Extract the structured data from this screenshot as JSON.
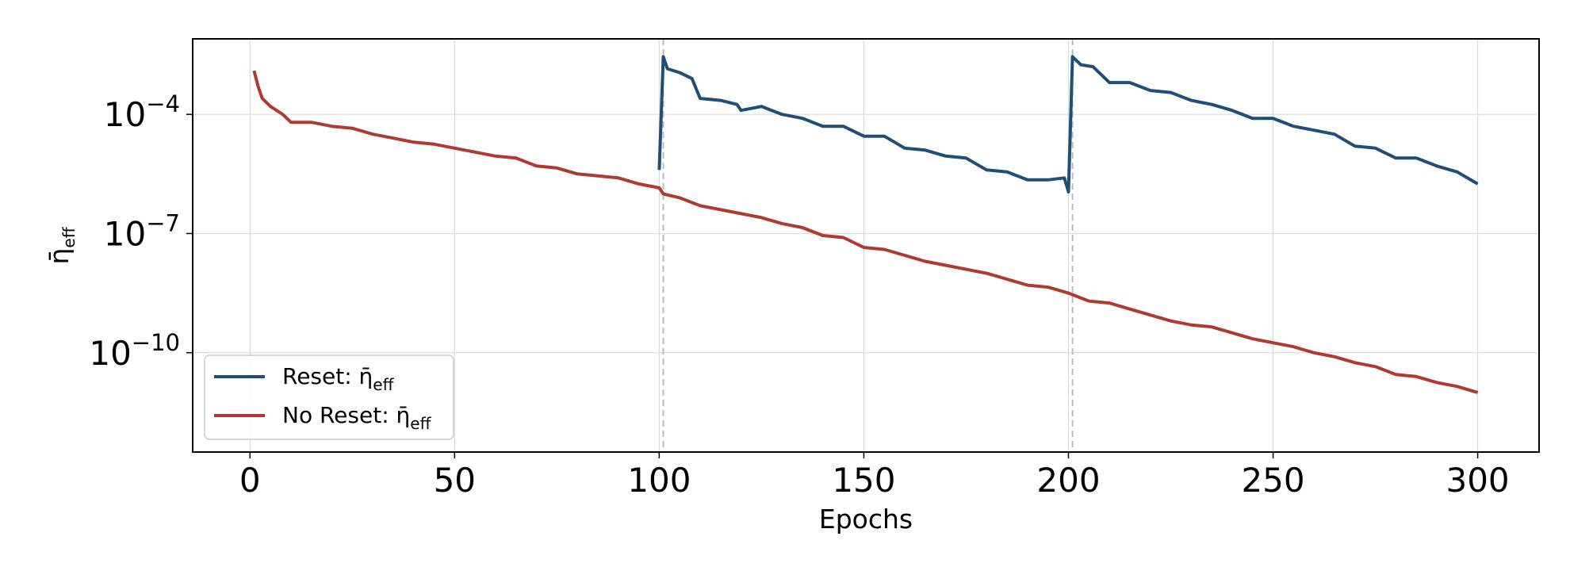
{
  "chart_data": {
    "type": "line",
    "xlabel": "Epochs",
    "ylabel": {
      "main": "η̄",
      "sub": "eff"
    },
    "xlim": [
      -14,
      315
    ],
    "ylim_log10": [
      -12.5,
      -2.1
    ],
    "y_scale": "log",
    "x_ticks": [
      0,
      50,
      100,
      150,
      200,
      250,
      300
    ],
    "y_ticks": [
      {
        "exp": -4,
        "base": "10",
        "power": "−4"
      },
      {
        "exp": -7,
        "base": "10",
        "power": "−7"
      },
      {
        "exp": -10,
        "base": "10",
        "power": "−10"
      }
    ],
    "grid": true,
    "reset_markers": [
      101,
      201
    ],
    "legend_position": "lower-left",
    "series": [
      {
        "name": "Reset: η̄eff",
        "label_main": "Reset: η̄",
        "label_sub": "eff",
        "color": "#1f4e79",
        "points_log10": [
          [
            100,
            -5.4
          ],
          [
            101,
            -2.55
          ],
          [
            102,
            -2.85
          ],
          [
            105,
            -2.95
          ],
          [
            108,
            -3.1
          ],
          [
            110,
            -3.6
          ],
          [
            115,
            -3.65
          ],
          [
            119,
            -3.75
          ],
          [
            120,
            -3.9
          ],
          [
            125,
            -3.8
          ],
          [
            130,
            -4.0
          ],
          [
            135,
            -4.1
          ],
          [
            140,
            -4.3
          ],
          [
            145,
            -4.3
          ],
          [
            150,
            -4.55
          ],
          [
            155,
            -4.55
          ],
          [
            160,
            -4.85
          ],
          [
            165,
            -4.9
          ],
          [
            170,
            -5.05
          ],
          [
            175,
            -5.1
          ],
          [
            180,
            -5.4
          ],
          [
            185,
            -5.45
          ],
          [
            190,
            -5.65
          ],
          [
            195,
            -5.65
          ],
          [
            199,
            -5.6
          ],
          [
            200,
            -5.95
          ],
          [
            201,
            -2.55
          ],
          [
            203,
            -2.75
          ],
          [
            206,
            -2.8
          ],
          [
            208,
            -3.0
          ],
          [
            210,
            -3.2
          ],
          [
            215,
            -3.2
          ],
          [
            220,
            -3.4
          ],
          [
            225,
            -3.45
          ],
          [
            230,
            -3.65
          ],
          [
            235,
            -3.75
          ],
          [
            240,
            -3.9
          ],
          [
            245,
            -4.1
          ],
          [
            250,
            -4.1
          ],
          [
            255,
            -4.3
          ],
          [
            260,
            -4.4
          ],
          [
            265,
            -4.5
          ],
          [
            270,
            -4.8
          ],
          [
            275,
            -4.85
          ],
          [
            280,
            -5.1
          ],
          [
            285,
            -5.1
          ],
          [
            290,
            -5.3
          ],
          [
            295,
            -5.45
          ],
          [
            300,
            -5.75
          ]
        ]
      },
      {
        "name": "No Reset: η̄eff",
        "label_main": "No Reset: η̄",
        "label_sub": "eff",
        "color": "#b03a2e",
        "points_log10": [
          [
            1,
            -2.9
          ],
          [
            2,
            -3.3
          ],
          [
            3,
            -3.6
          ],
          [
            5,
            -3.8
          ],
          [
            8,
            -4.0
          ],
          [
            10,
            -4.2
          ],
          [
            15,
            -4.2
          ],
          [
            20,
            -4.3
          ],
          [
            25,
            -4.35
          ],
          [
            30,
            -4.5
          ],
          [
            35,
            -4.6
          ],
          [
            40,
            -4.7
          ],
          [
            45,
            -4.75
          ],
          [
            50,
            -4.85
          ],
          [
            55,
            -4.95
          ],
          [
            60,
            -5.05
          ],
          [
            65,
            -5.1
          ],
          [
            70,
            -5.3
          ],
          [
            75,
            -5.35
          ],
          [
            80,
            -5.5
          ],
          [
            85,
            -5.55
          ],
          [
            90,
            -5.6
          ],
          [
            95,
            -5.75
          ],
          [
            100,
            -5.85
          ],
          [
            101,
            -6.0
          ],
          [
            105,
            -6.1
          ],
          [
            110,
            -6.3
          ],
          [
            115,
            -6.4
          ],
          [
            120,
            -6.5
          ],
          [
            125,
            -6.6
          ],
          [
            130,
            -6.75
          ],
          [
            135,
            -6.85
          ],
          [
            140,
            -7.05
          ],
          [
            145,
            -7.1
          ],
          [
            150,
            -7.35
          ],
          [
            155,
            -7.4
          ],
          [
            160,
            -7.55
          ],
          [
            165,
            -7.7
          ],
          [
            170,
            -7.8
          ],
          [
            175,
            -7.9
          ],
          [
            180,
            -8.0
          ],
          [
            185,
            -8.15
          ],
          [
            190,
            -8.3
          ],
          [
            195,
            -8.35
          ],
          [
            200,
            -8.5
          ],
          [
            205,
            -8.7
          ],
          [
            210,
            -8.75
          ],
          [
            215,
            -8.9
          ],
          [
            220,
            -9.05
          ],
          [
            225,
            -9.2
          ],
          [
            230,
            -9.3
          ],
          [
            235,
            -9.35
          ],
          [
            240,
            -9.5
          ],
          [
            245,
            -9.65
          ],
          [
            250,
            -9.75
          ],
          [
            255,
            -9.85
          ],
          [
            260,
            -10.0
          ],
          [
            265,
            -10.1
          ],
          [
            270,
            -10.25
          ],
          [
            275,
            -10.35
          ],
          [
            280,
            -10.55
          ],
          [
            285,
            -10.6
          ],
          [
            290,
            -10.75
          ],
          [
            295,
            -10.85
          ],
          [
            300,
            -11.0
          ]
        ]
      }
    ]
  }
}
